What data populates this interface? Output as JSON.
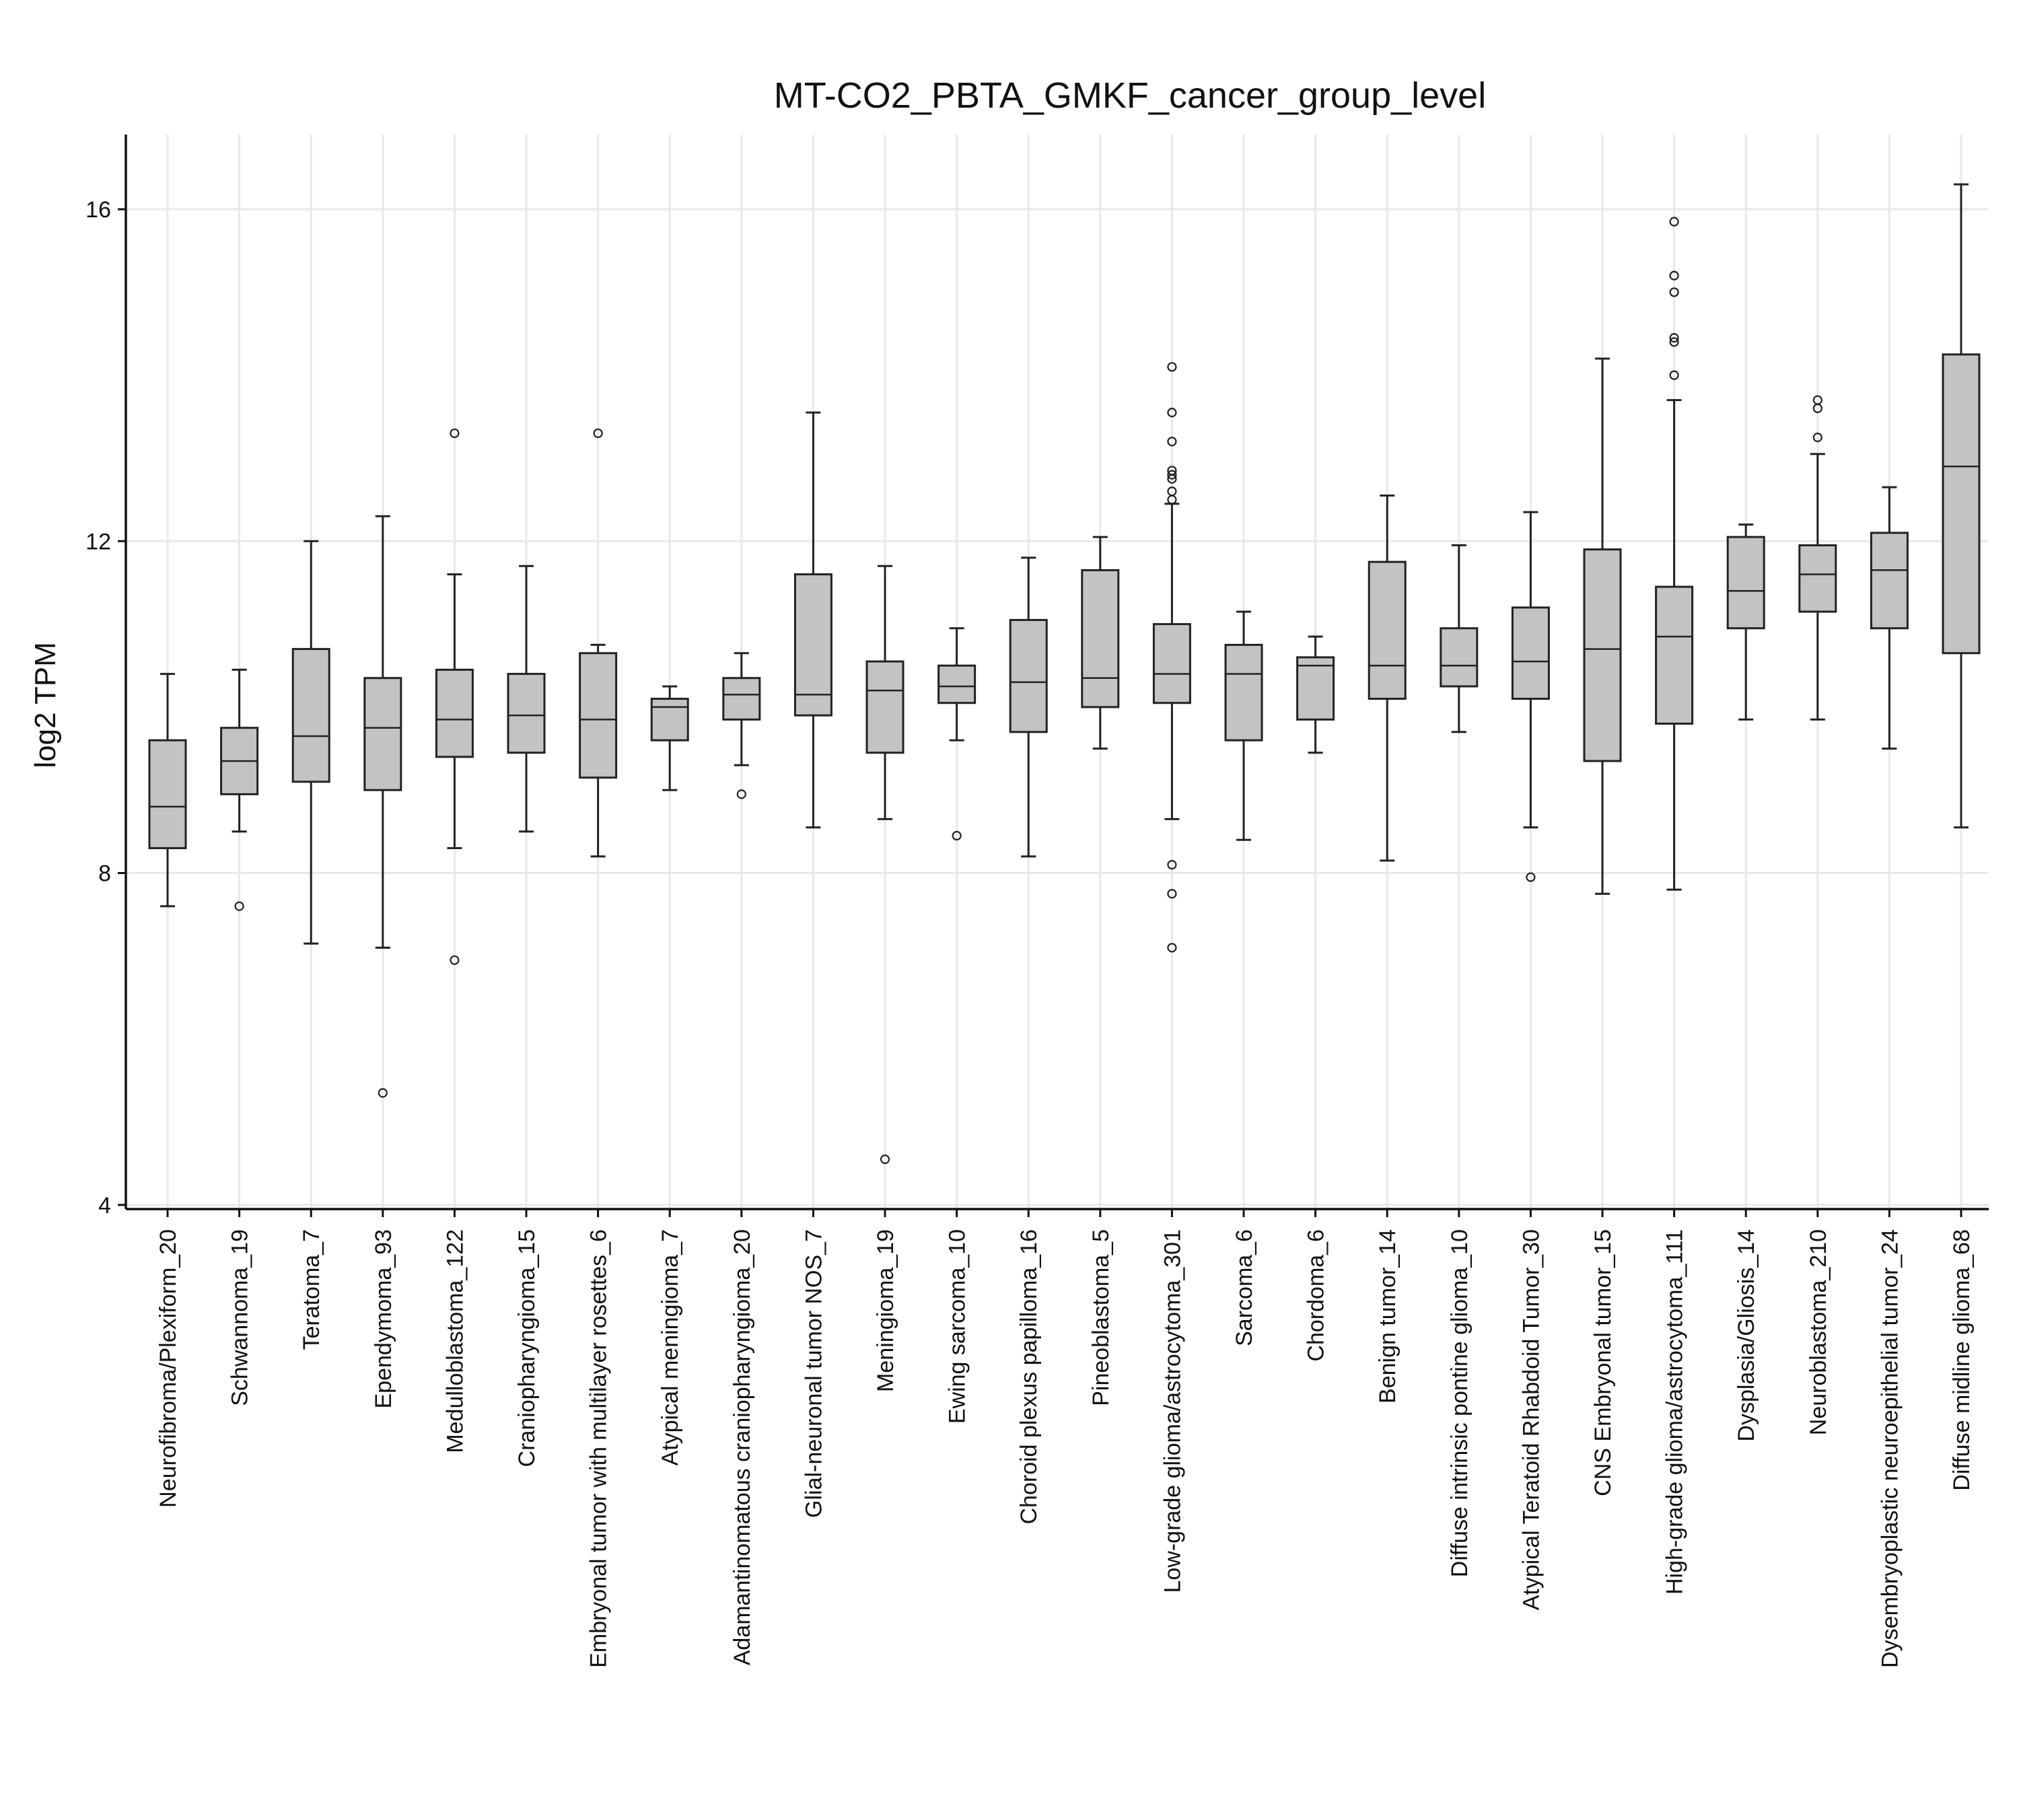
{
  "chart_data": {
    "type": "boxplot",
    "title": "MT-CO2_PBTA_GMKF_cancer_group_level",
    "xlabel": "",
    "ylabel": "log2 TPM",
    "ylim": [
      3.95,
      16.9
    ],
    "yticks": [
      4,
      8,
      12,
      16
    ],
    "grid": true,
    "colors": {
      "box_fill": "#c3c3c3",
      "box_stroke": "#222222",
      "grid": "#e8e8e8"
    },
    "categories": [
      "Neurofibroma/Plexiform_20",
      "Schwannoma_19",
      "Teratoma_7",
      "Ependymoma_93",
      "Medulloblastoma_122",
      "Craniopharyngioma_15",
      "Embryonal tumor with multilayer rosettes_6",
      "Atypical meningioma_7",
      "Adamantinomatous craniopharyngioma_20",
      "Glial-neuronal tumor NOS_7",
      "Meningioma_19",
      "Ewing sarcoma_10",
      "Choroid plexus papilloma_16",
      "Pineoblastoma_5",
      "Low-grade glioma/astrocytoma_301",
      "Sarcoma_6",
      "Chordoma_6",
      "Benign tumor_14",
      "Diffuse intrinsic pontine glioma_10",
      "Atypical Teratoid Rhabdoid Tumor_30",
      "CNS Embryonal tumor_15",
      "High-grade glioma/astrocytoma_111",
      "Dysplasia/Gliosis_14",
      "Neuroblastoma_210",
      "Dysembryoplastic neuroepithelial tumor_24",
      "Diffuse midline glioma_68"
    ],
    "boxes": [
      {
        "low": 7.6,
        "q1": 8.3,
        "median": 8.8,
        "q3": 9.6,
        "high": 10.4,
        "outliers": []
      },
      {
        "low": 8.5,
        "q1": 8.95,
        "median": 9.35,
        "q3": 9.75,
        "high": 10.45,
        "outliers": [
          7.6
        ]
      },
      {
        "low": 7.15,
        "q1": 9.1,
        "median": 9.65,
        "q3": 10.7,
        "high": 12.0,
        "outliers": []
      },
      {
        "low": 7.1,
        "q1": 9.0,
        "median": 9.75,
        "q3": 10.35,
        "high": 12.3,
        "outliers": [
          5.35
        ]
      },
      {
        "low": 8.3,
        "q1": 9.4,
        "median": 9.85,
        "q3": 10.45,
        "high": 11.6,
        "outliers": [
          13.3,
          6.95
        ]
      },
      {
        "low": 8.5,
        "q1": 9.45,
        "median": 9.9,
        "q3": 10.4,
        "high": 11.7,
        "outliers": []
      },
      {
        "low": 8.2,
        "q1": 9.15,
        "median": 9.85,
        "q3": 10.65,
        "high": 10.75,
        "outliers": [
          13.3
        ]
      },
      {
        "low": 9.0,
        "q1": 9.6,
        "median": 10.0,
        "q3": 10.1,
        "high": 10.25,
        "outliers": []
      },
      {
        "low": 9.3,
        "q1": 9.85,
        "median": 10.15,
        "q3": 10.35,
        "high": 10.65,
        "outliers": [
          8.95
        ]
      },
      {
        "low": 8.55,
        "q1": 9.9,
        "median": 10.15,
        "q3": 11.6,
        "high": 13.55,
        "outliers": []
      },
      {
        "low": 8.65,
        "q1": 9.45,
        "median": 10.2,
        "q3": 10.55,
        "high": 11.7,
        "outliers": [
          4.55
        ]
      },
      {
        "low": 9.6,
        "q1": 10.05,
        "median": 10.25,
        "q3": 10.5,
        "high": 10.95,
        "outliers": [
          8.45
        ]
      },
      {
        "low": 8.2,
        "q1": 9.7,
        "median": 10.3,
        "q3": 11.05,
        "high": 11.8,
        "outliers": []
      },
      {
        "low": 9.5,
        "q1": 10.0,
        "median": 10.35,
        "q3": 11.65,
        "high": 12.05,
        "outliers": []
      },
      {
        "low": 8.65,
        "q1": 10.05,
        "median": 10.4,
        "q3": 11.0,
        "high": 12.45,
        "outliers": [
          14.1,
          13.55,
          13.2,
          12.85,
          12.8,
          12.75,
          12.6,
          12.5,
          8.1,
          7.75,
          7.1
        ]
      },
      {
        "low": 8.4,
        "q1": 9.6,
        "median": 10.4,
        "q3": 10.75,
        "high": 11.15,
        "outliers": []
      },
      {
        "low": 9.45,
        "q1": 9.85,
        "median": 10.5,
        "q3": 10.6,
        "high": 10.85,
        "outliers": []
      },
      {
        "low": 8.15,
        "q1": 10.1,
        "median": 10.5,
        "q3": 11.75,
        "high": 12.55,
        "outliers": []
      },
      {
        "low": 9.7,
        "q1": 10.25,
        "median": 10.5,
        "q3": 10.95,
        "high": 11.95,
        "outliers": []
      },
      {
        "low": 8.55,
        "q1": 10.1,
        "median": 10.55,
        "q3": 11.2,
        "high": 12.35,
        "outliers": [
          7.95
        ]
      },
      {
        "low": 7.75,
        "q1": 9.35,
        "median": 10.7,
        "q3": 11.9,
        "high": 14.2,
        "outliers": []
      },
      {
        "low": 7.8,
        "q1": 9.8,
        "median": 10.85,
        "q3": 11.45,
        "high": 13.7,
        "outliers": [
          15.85,
          15.2,
          15.0,
          14.45,
          14.4,
          14.0
        ]
      },
      {
        "low": 9.85,
        "q1": 10.95,
        "median": 11.4,
        "q3": 12.05,
        "high": 12.2,
        "outliers": []
      },
      {
        "low": 9.85,
        "q1": 11.15,
        "median": 11.6,
        "q3": 11.95,
        "high": 13.05,
        "outliers": [
          13.7,
          13.6,
          13.25
        ]
      },
      {
        "low": 9.5,
        "q1": 10.95,
        "median": 11.65,
        "q3": 12.1,
        "high": 12.65,
        "outliers": []
      },
      {
        "low": 8.55,
        "q1": 10.65,
        "median": 12.9,
        "q3": 14.25,
        "high": 16.3,
        "outliers": []
      }
    ]
  }
}
